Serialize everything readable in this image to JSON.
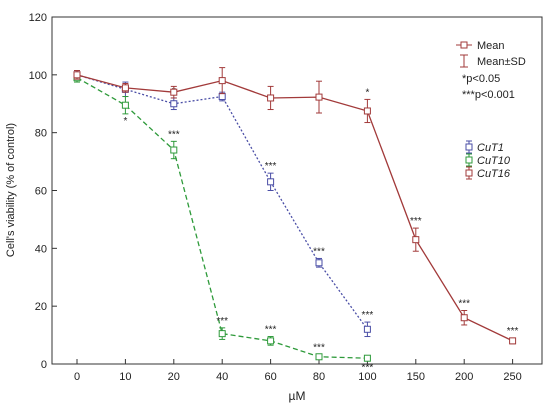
{
  "chart_data": {
    "type": "line",
    "xlabel": "µM",
    "ylabel": "Cell's viability (% of control)",
    "categories": [
      "0",
      "10",
      "20",
      "40",
      "60",
      "80",
      "100",
      "150",
      "200",
      "250"
    ],
    "ylim": [
      0,
      120
    ],
    "yticks": [
      "0",
      "20",
      "40",
      "60",
      "80",
      "100",
      "120"
    ],
    "grid": false,
    "legend_top": {
      "mean": "Mean",
      "sd": "Mean±SD",
      "sig1": "*p<0.05",
      "sig2": "***p<0.001"
    },
    "series": [
      {
        "name": "CuT1",
        "color": "#4a4ea6",
        "dash": "2,2",
        "points": [
          {
            "x": "0",
            "y": 100,
            "sd": 1.5,
            "sig": ""
          },
          {
            "x": "10",
            "y": 95,
            "sd": 2.5,
            "sig": ""
          },
          {
            "x": "20",
            "y": 90,
            "sd": 2,
            "sig": "*"
          },
          {
            "x": "40",
            "y": 92.5,
            "sd": 1.5,
            "sig": ""
          },
          {
            "x": "60",
            "y": 63,
            "sd": 3,
            "sig": "***"
          },
          {
            "x": "80",
            "y": 35,
            "sd": 1.5,
            "sig": "***"
          },
          {
            "x": "100",
            "y": 12,
            "sd": 2.5,
            "sig": "***"
          }
        ]
      },
      {
        "name": "CuT10",
        "color": "#2e9a3a",
        "dash": "5,3",
        "points": [
          {
            "x": "0",
            "y": 99,
            "sd": 1.5,
            "sig": ""
          },
          {
            "x": "10",
            "y": 89.5,
            "sd": 3,
            "sig": "*"
          },
          {
            "x": "20",
            "y": 74,
            "sd": 3,
            "sig": "***"
          },
          {
            "x": "40",
            "y": 10.5,
            "sd": 2,
            "sig": "***"
          },
          {
            "x": "60",
            "y": 8,
            "sd": 1.5,
            "sig": "***"
          },
          {
            "x": "80",
            "y": 2.5,
            "sd": 0.8,
            "sig": "***"
          },
          {
            "x": "100",
            "y": 2,
            "sd": 0.8,
            "sig": "***"
          }
        ]
      },
      {
        "name": "CuT16",
        "color": "#a23a3a",
        "dash": "",
        "points": [
          {
            "x": "0",
            "y": 100,
            "sd": 1.5,
            "sig": ""
          },
          {
            "x": "10",
            "y": 95.5,
            "sd": 1.5,
            "sig": ""
          },
          {
            "x": "20",
            "y": 94,
            "sd": 2,
            "sig": ""
          },
          {
            "x": "40",
            "y": 98,
            "sd": 4.5,
            "sig": ""
          },
          {
            "x": "60",
            "y": 92,
            "sd": 4,
            "sig": ""
          },
          {
            "x": "80",
            "y": 92.3,
            "sd": 5.5,
            "sig": ""
          },
          {
            "x": "100",
            "y": 87.5,
            "sd": 4,
            "sig": "*"
          },
          {
            "x": "150",
            "y": 43,
            "sd": 4,
            "sig": "***"
          },
          {
            "x": "200",
            "y": 16,
            "sd": 2.5,
            "sig": "***"
          },
          {
            "x": "250",
            "y": 8,
            "sd": 1,
            "sig": "***"
          }
        ]
      }
    ]
  }
}
